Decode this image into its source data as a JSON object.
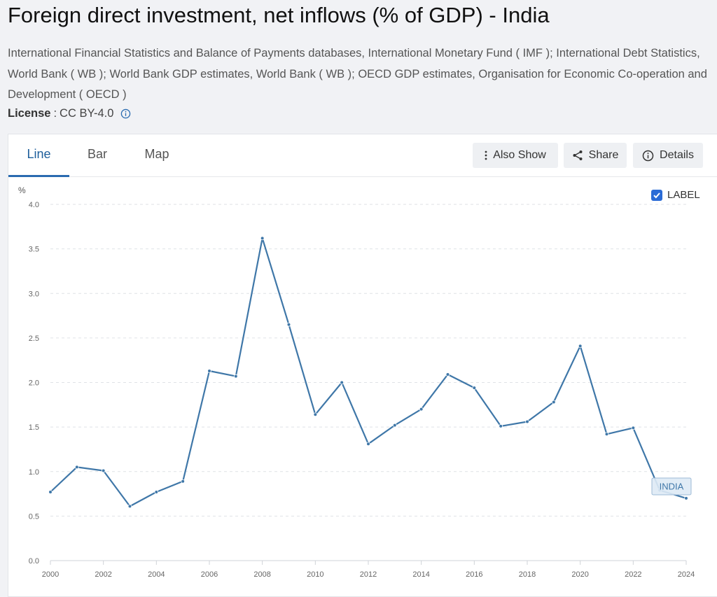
{
  "header": {
    "title": "Foreign direct investment, net inflows (% of GDP) - India",
    "source": "International Financial Statistics and Balance of Payments databases, International Monetary Fund ( IMF ); International Debt Statistics, World Bank ( WB ); World Bank GDP estimates, World Bank ( WB ); OECD GDP estimates, Organisation for Economic Co-operation and Development ( OECD )",
    "license_label": "License",
    "license_separator": ":",
    "license_value": "CC BY-4.0"
  },
  "tabs": [
    {
      "label": "Line",
      "active": true
    },
    {
      "label": "Bar",
      "active": false
    },
    {
      "label": "Map",
      "active": false
    }
  ],
  "toolbar": {
    "also_show": "Also Show",
    "share": "Share",
    "details": "Details"
  },
  "label_toggle": {
    "label": "LABEL",
    "checked": true
  },
  "colors": {
    "line": "#3f77a8",
    "accent": "#2a6bb0",
    "checkbox": "#2a6bd6"
  },
  "chart_data": {
    "type": "line",
    "ylabel": "%",
    "ylim": [
      0,
      4.0
    ],
    "yticks": [
      0.0,
      0.5,
      1.0,
      1.5,
      2.0,
      2.5,
      3.0,
      3.5,
      4.0
    ],
    "ytick_labels": [
      "0.0",
      "0.5",
      "1.0",
      "1.5",
      "2.0",
      "2.5",
      "3.0",
      "3.5",
      "4.0"
    ],
    "xlim": [
      2000,
      2024
    ],
    "xticks": [
      2000,
      2002,
      2004,
      2006,
      2008,
      2010,
      2012,
      2014,
      2016,
      2018,
      2020,
      2022,
      2024
    ],
    "xtick_labels": [
      "2000",
      "2002",
      "2004",
      "2006",
      "2008",
      "2010",
      "2012",
      "2014",
      "2016",
      "2018",
      "2020",
      "2022",
      "2024"
    ],
    "grid": true,
    "series": [
      {
        "name": "INDIA",
        "x": [
          2000,
          2001,
          2002,
          2003,
          2004,
          2005,
          2006,
          2007,
          2008,
          2009,
          2010,
          2011,
          2012,
          2013,
          2014,
          2015,
          2016,
          2017,
          2018,
          2019,
          2020,
          2021,
          2022,
          2023,
          2024
        ],
        "values": [
          0.77,
          1.05,
          1.01,
          0.61,
          0.77,
          0.89,
          2.13,
          2.07,
          3.62,
          2.65,
          1.64,
          2.0,
          1.31,
          1.52,
          1.7,
          2.09,
          1.94,
          1.51,
          1.56,
          1.78,
          2.41,
          1.42,
          1.49,
          0.79,
          0.7
        ]
      }
    ]
  }
}
